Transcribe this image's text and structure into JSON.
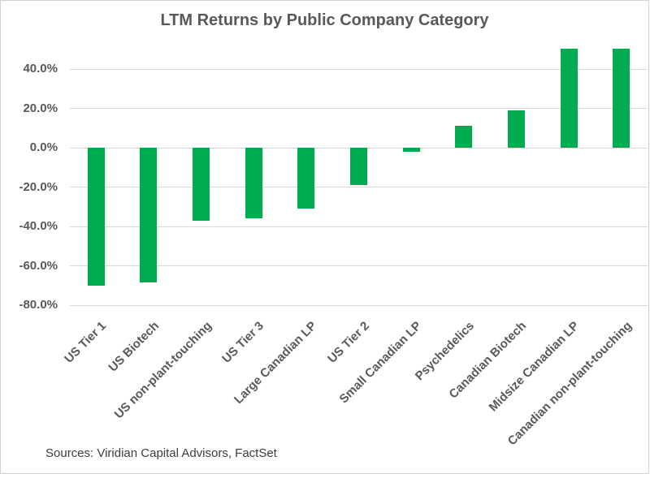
{
  "chart": {
    "frame_border_color": "#d2d2d2",
    "background_color": "#ffffff"
  },
  "chart_data": {
    "type": "bar",
    "title": "LTM Returns by Public Company Category",
    "categories": [
      "US Tier 1",
      "US Biotech",
      "US non-plant-touching",
      "US Tier 3",
      "Large Canadian LP",
      "US Tier 2",
      "Small Canadian LP",
      "Psychedelics",
      "Canadian Biotech",
      "Midsize Canadian LP",
      "Canadian non-plant-touching"
    ],
    "values": [
      -70.0,
      -68.5,
      -37.0,
      -36.0,
      -31.0,
      -19.0,
      -2.0,
      11.0,
      19.0,
      50.5,
      50.5
    ],
    "value_unit": "percent",
    "bar_color": "#00ac4f",
    "ylim": [
      -80,
      55
    ],
    "yticks": [
      {
        "value": 40,
        "label": "40.0%"
      },
      {
        "value": 20,
        "label": "20.0%"
      },
      {
        "value": 0,
        "label": "0.0%"
      },
      {
        "value": -20,
        "label": "-20.0%"
      },
      {
        "value": -40,
        "label": "-40.0%"
      },
      {
        "value": -60,
        "label": "-60.0%"
      },
      {
        "value": -80,
        "label": "-80.0%"
      }
    ],
    "grid": true,
    "gridline_color": "#d9d9d9",
    "legend": false,
    "xlabel": "",
    "ylabel": ""
  },
  "footer": {
    "sources": "Sources: Viridian Capital Advisors, FactSet"
  }
}
